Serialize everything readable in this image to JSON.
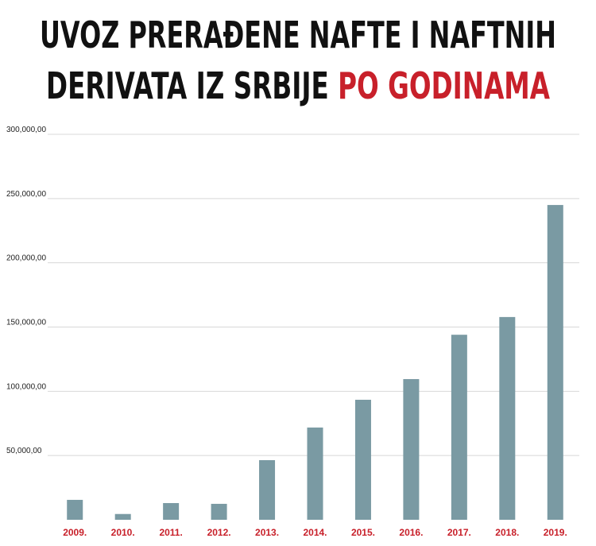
{
  "chart_data": {
    "type": "bar",
    "title": [
      "UVOZ PRERAĐENE NAFTE I NAFTNIH",
      "DERIVATA IZ SRBIJE"
    ],
    "title_highlight": "PO GODINAMA",
    "title_highlight_color": "#c8202a",
    "categories": [
      "2009.",
      "2010.",
      "2011.",
      "2012.",
      "2013.",
      "2014.",
      "2015.",
      "2016.",
      "2017.",
      "2018.",
      "2019."
    ],
    "values": [
      15500,
      4500,
      13000,
      12400,
      46400,
      71800,
      93400,
      109500,
      144000,
      157800,
      245000
    ],
    "color": "#7a9aa3",
    "category_color": "#c8202a",
    "ylim": [
      0,
      300000
    ],
    "yticks": [
      {
        "value": 50000,
        "label": "50,000,00"
      },
      {
        "value": 100000,
        "label": "100,000,00"
      },
      {
        "value": 150000,
        "label": "150,000,00"
      },
      {
        "value": 200000,
        "label": "200,000,00"
      },
      {
        "value": 250000,
        "label": "250,000,00"
      },
      {
        "value": 300000,
        "label": "300,000,00"
      }
    ],
    "grid": true
  }
}
